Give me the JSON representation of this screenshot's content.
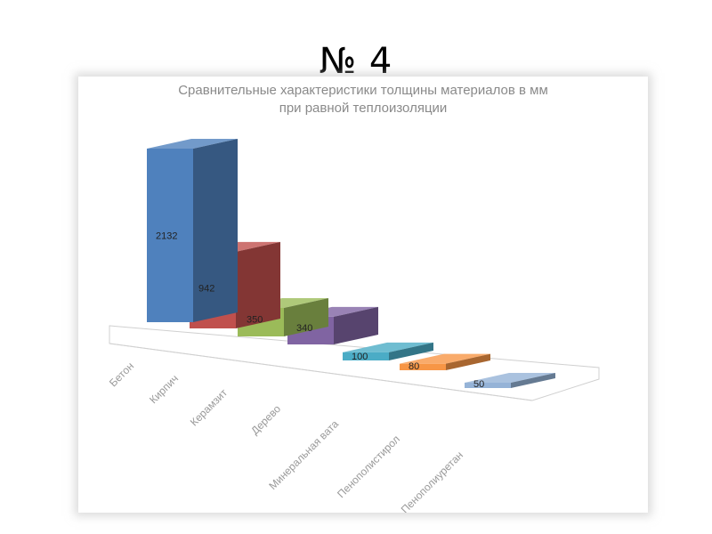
{
  "slide": {
    "title": "№ 4"
  },
  "chart_data": {
    "type": "bar",
    "title_lines": [
      "Сравнительные характеристики толщины материалов в мм",
      "при равной теплоизоляции"
    ],
    "categories": [
      "Бетон",
      "Кирпич",
      "Керамзит",
      "Дерево",
      "Минеральная вата",
      "Пенополистирол",
      "Пенополиуретан"
    ],
    "values": [
      2132,
      942,
      350,
      340,
      100,
      80,
      50
    ],
    "value_labels": [
      "2132",
      "942",
      "350",
      "340",
      "100",
      "80",
      "50"
    ],
    "colors": [
      "#4f81bd",
      "#c0504d",
      "#9bbb59",
      "#8064a2",
      "#4bacc6",
      "#f79646",
      "#95b3d7"
    ],
    "style": "3d-column",
    "data_labels": true,
    "gridlines": false,
    "legend": "none"
  }
}
